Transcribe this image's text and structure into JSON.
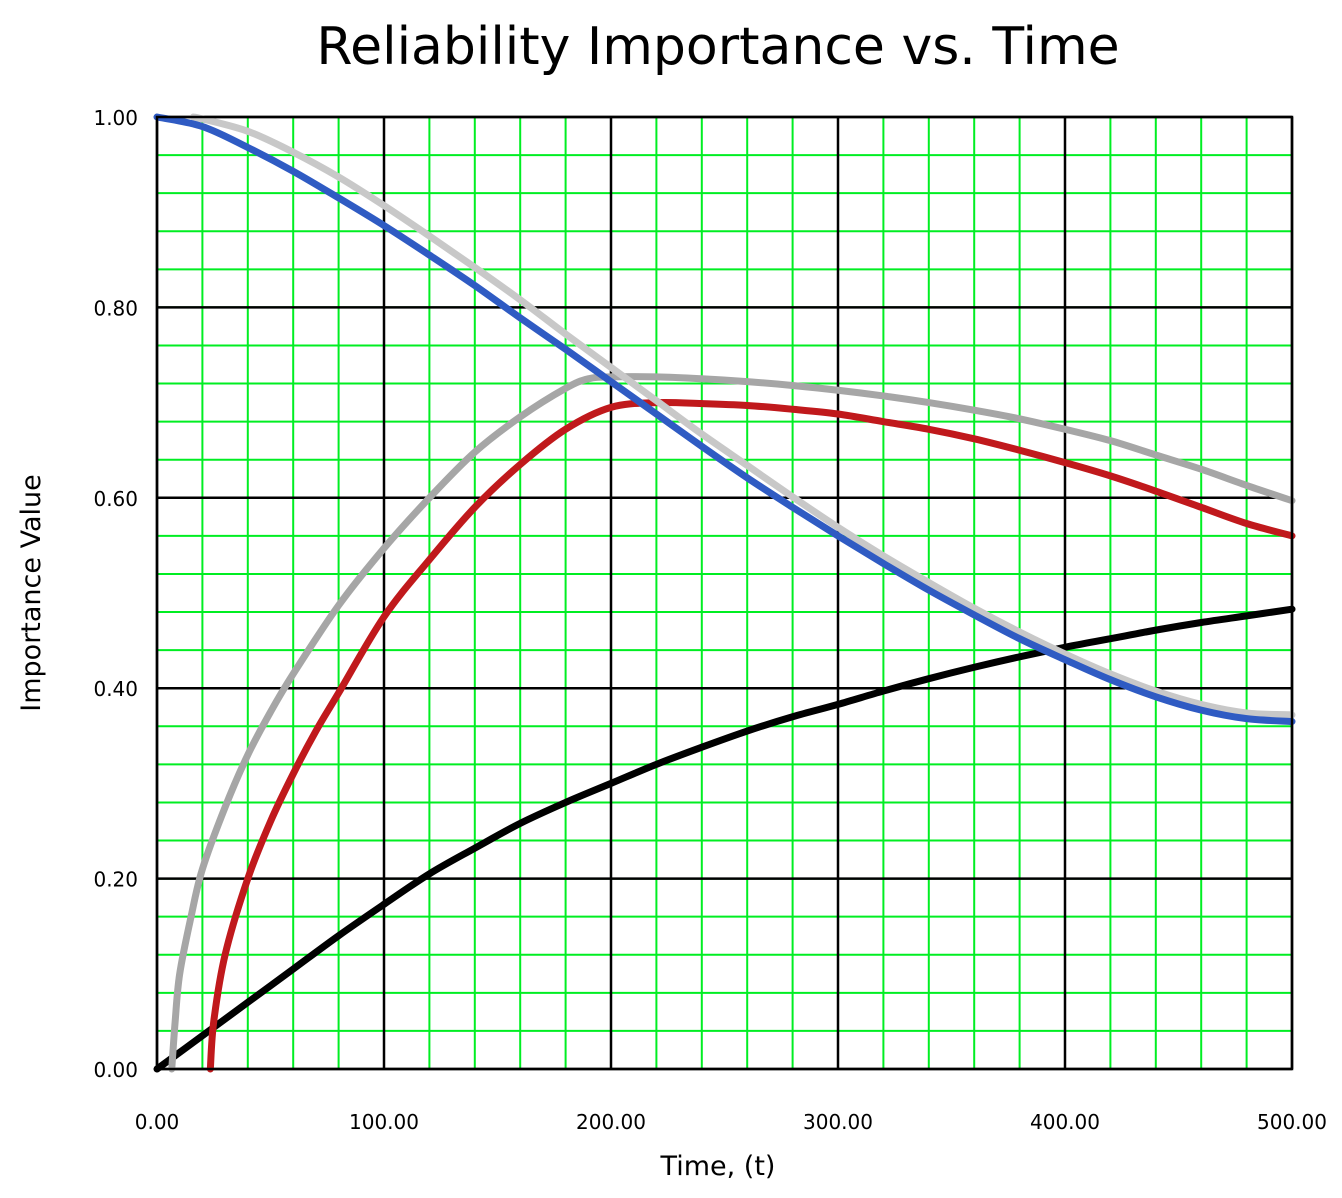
{
  "chart_data": {
    "type": "line",
    "title": "Reliability Importance vs. Time",
    "xlabel": "Time, (t)",
    "ylabel": "Importance Value",
    "xlim": [
      0,
      500
    ],
    "ylim": [
      0,
      1
    ],
    "x_ticks": [
      "0.00",
      "100.00",
      "200.00",
      "300.00",
      "400.00",
      "500.00"
    ],
    "y_ticks": [
      "0.00",
      "0.20",
      "0.40",
      "0.60",
      "0.80",
      "1.00"
    ],
    "grid": {
      "major": true,
      "minor": true,
      "major_step_x": 100,
      "minor_step_x": 20,
      "major_step_y": 0.2,
      "minor_step_y": 0.04
    },
    "legend": "none",
    "series": [
      {
        "color": "#000000",
        "x": [
          0,
          20,
          40,
          60,
          80,
          100,
          120,
          140,
          160,
          180,
          200,
          220,
          240,
          260,
          280,
          300,
          320,
          340,
          360,
          380,
          400,
          420,
          440,
          460,
          480,
          500
        ],
        "y": [
          0.0,
          0.035,
          0.07,
          0.105,
          0.14,
          0.173,
          0.205,
          0.232,
          0.258,
          0.28,
          0.3,
          0.32,
          0.338,
          0.355,
          0.37,
          0.383,
          0.397,
          0.41,
          0.422,
          0.433,
          0.443,
          0.452,
          0.461,
          0.469,
          0.476,
          0.483
        ]
      },
      {
        "color": "#c0191c",
        "x": [
          23.5,
          25,
          30,
          40,
          50,
          60,
          70,
          80,
          100,
          120,
          140,
          160,
          180,
          200,
          220,
          240,
          260,
          280,
          300,
          320,
          340,
          360,
          380,
          400,
          420,
          440,
          460,
          480,
          500
        ],
        "y": [
          0.0,
          0.05,
          0.12,
          0.2,
          0.26,
          0.31,
          0.355,
          0.395,
          0.475,
          0.535,
          0.59,
          0.635,
          0.672,
          0.695,
          0.7,
          0.699,
          0.697,
          0.693,
          0.688,
          0.68,
          0.672,
          0.662,
          0.65,
          0.637,
          0.623,
          0.607,
          0.59,
          0.573,
          0.56
        ]
      },
      {
        "color": "#a6a6a6",
        "x": [
          6.5,
          8,
          10,
          15,
          20,
          30,
          40,
          50,
          60,
          80,
          100,
          120,
          140,
          160,
          180,
          190,
          200,
          220,
          240,
          260,
          280,
          300,
          320,
          340,
          360,
          380,
          400,
          420,
          440,
          460,
          480,
          500
        ],
        "y": [
          0.0,
          0.05,
          0.1,
          0.16,
          0.21,
          0.275,
          0.33,
          0.375,
          0.415,
          0.487,
          0.547,
          0.6,
          0.648,
          0.685,
          0.715,
          0.725,
          0.727,
          0.727,
          0.725,
          0.722,
          0.718,
          0.713,
          0.707,
          0.7,
          0.692,
          0.683,
          0.672,
          0.66,
          0.645,
          0.63,
          0.613,
          0.597
        ]
      },
      {
        "color": "#c8c8c8",
        "x": [
          16,
          20,
          40,
          60,
          80,
          100,
          120,
          140,
          160,
          180,
          200,
          220,
          240,
          260,
          280,
          300,
          320,
          340,
          360,
          380,
          400,
          420,
          440,
          460,
          480,
          500
        ],
        "y": [
          1.0,
          0.998,
          0.985,
          0.963,
          0.937,
          0.907,
          0.875,
          0.842,
          0.808,
          0.772,
          0.737,
          0.702,
          0.667,
          0.634,
          0.601,
          0.569,
          0.539,
          0.511,
          0.484,
          0.459,
          0.436,
          0.415,
          0.397,
          0.383,
          0.374,
          0.372
        ]
      },
      {
        "color": "#2f5bc3",
        "x": [
          0,
          20,
          40,
          60,
          80,
          100,
          120,
          140,
          160,
          180,
          200,
          220,
          240,
          260,
          280,
          300,
          320,
          340,
          360,
          380,
          400,
          420,
          440,
          460,
          480,
          500
        ],
        "y": [
          1.0,
          0.99,
          0.968,
          0.943,
          0.915,
          0.886,
          0.855,
          0.823,
          0.789,
          0.756,
          0.722,
          0.688,
          0.654,
          0.621,
          0.59,
          0.56,
          0.531,
          0.503,
          0.477,
          0.452,
          0.43,
          0.409,
          0.391,
          0.377,
          0.368,
          0.365
        ]
      }
    ]
  }
}
